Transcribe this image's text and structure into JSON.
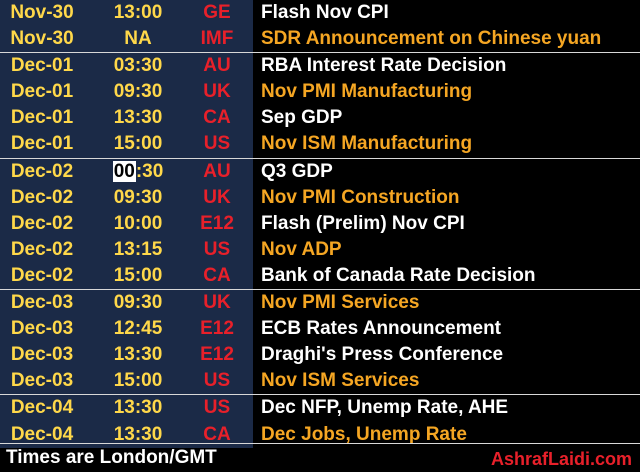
{
  "rows": [
    {
      "date": "Nov-30",
      "time": "13:00",
      "currency": "GE",
      "event": "Flash Nov CPI",
      "color": "white",
      "sep": false
    },
    {
      "date": "Nov-30",
      "time": "NA",
      "currency": "IMF",
      "event": "SDR Announcement on Chinese yuan",
      "color": "orange",
      "sep": false
    },
    {
      "date": "Dec-01",
      "time": "03:30",
      "currency": "AU",
      "event": "RBA Interest Rate Decision",
      "color": "white",
      "sep": true
    },
    {
      "date": "Dec-01",
      "time": "09:30",
      "currency": "UK",
      "event": "Nov PMI Manufacturing",
      "color": "orange",
      "sep": false
    },
    {
      "date": "Dec-01",
      "time": "13:30",
      "currency": "CA",
      "event": "Sep GDP",
      "color": "white",
      "sep": false
    },
    {
      "date": "Dec-01",
      "time": "15:00",
      "currency": "US",
      "event": "Nov ISM Manufacturing",
      "color": "orange",
      "sep": false
    },
    {
      "date": "Dec-02",
      "time_hl": "00",
      "time_rest": ":30",
      "currency": "AU",
      "event": "Q3 GDP",
      "color": "white",
      "sep": true
    },
    {
      "date": "Dec-02",
      "time": "09:30",
      "currency": "UK",
      "event": "Nov PMI Construction",
      "color": "orange",
      "sep": false
    },
    {
      "date": "Dec-02",
      "time": "10:00",
      "currency": "E12",
      "event": "Flash (Prelim) Nov CPI",
      "color": "white",
      "sep": false
    },
    {
      "date": "Dec-02",
      "time": "13:15",
      "currency": "US",
      "event": "Nov ADP",
      "color": "orange",
      "sep": false
    },
    {
      "date": "Dec-02",
      "time": "15:00",
      "currency": "CA",
      "event": "Bank of Canada Rate Decision",
      "color": "white",
      "sep": false
    },
    {
      "date": "Dec-03",
      "time": "09:30",
      "currency": "UK",
      "event": "Nov PMI Services",
      "color": "orange",
      "sep": true
    },
    {
      "date": "Dec-03",
      "time": "12:45",
      "currency": "E12",
      "event": "ECB Rates Announcement",
      "color": "white",
      "sep": false
    },
    {
      "date": "Dec-03",
      "time": "13:30",
      "currency": "E12",
      "event": "Draghi's Press Conference",
      "color": "white",
      "sep": false
    },
    {
      "date": "Dec-03",
      "time": "15:00",
      "currency": "US",
      "event": "Nov ISM Services",
      "color": "orange",
      "sep": false
    },
    {
      "date": "Dec-04",
      "time": "13:30",
      "currency": "US",
      "event": "Dec NFP, Unemp Rate, AHE",
      "color": "white",
      "sep": true
    },
    {
      "date": "Dec-04",
      "time": "13:30",
      "currency": "CA",
      "event": "Dec Jobs, Unemp Rate",
      "color": "orange",
      "sep": false
    }
  ],
  "footer": {
    "note": "Times are London/GMT",
    "brand": "AshrafLaidi.com"
  },
  "colors": {
    "left_panel": "#1b2a47",
    "date_time": "#ffd84a",
    "currency": "#e8202a",
    "event_white": "#ffffff",
    "event_orange": "#f5a623"
  }
}
